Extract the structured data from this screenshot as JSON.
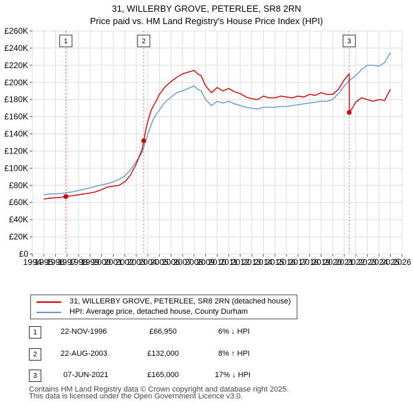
{
  "chart_data": {
    "type": "line",
    "title": "31, WILLERBY GROVE, PETERLEE, SR8 2RN",
    "subtitle": "Price paid vs. HM Land Registry's House Price Index (HPI)",
    "xlabel": "",
    "ylabel": "",
    "xlim": [
      1994,
      2026
    ],
    "ylim": [
      0,
      260000
    ],
    "x_ticks": [
      "1994",
      "1995",
      "1996",
      "1997",
      "1998",
      "1999",
      "2000",
      "2001",
      "2002",
      "2003",
      "2004",
      "2005",
      "2006",
      "2007",
      "2008",
      "2009",
      "2010",
      "2011",
      "2012",
      "2013",
      "2014",
      "2015",
      "2016",
      "2017",
      "2018",
      "2019",
      "2020",
      "2021",
      "2022",
      "2023",
      "2024",
      "2025",
      "2026"
    ],
    "y_ticks": [
      {
        "value": 0,
        "label": "£0"
      },
      {
        "value": 20000,
        "label": "£20K"
      },
      {
        "value": 40000,
        "label": "£40K"
      },
      {
        "value": 60000,
        "label": "£60K"
      },
      {
        "value": 80000,
        "label": "£80K"
      },
      {
        "value": 100000,
        "label": "£100K"
      },
      {
        "value": 120000,
        "label": "£120K"
      },
      {
        "value": 140000,
        "label": "£140K"
      },
      {
        "value": 160000,
        "label": "£160K"
      },
      {
        "value": 180000,
        "label": "£180K"
      },
      {
        "value": 200000,
        "label": "£200K"
      },
      {
        "value": 220000,
        "label": "£220K"
      },
      {
        "value": 240000,
        "label": "£240K"
      },
      {
        "value": 260000,
        "label": "£260K"
      }
    ],
    "grid": true,
    "series": [
      {
        "name": "31, WILLERBY GROVE, PETERLEE, SR8 2RN (detached house)",
        "color": "#cc0000",
        "x": [
          1995.0,
          1995.5,
          1996.0,
          1996.5,
          1996.9,
          1997.5,
          1998.0,
          1998.5,
          1999.0,
          1999.5,
          2000.0,
          2000.5,
          2001.0,
          2001.5,
          2002.0,
          2002.5,
          2003.0,
          2003.5,
          2003.64,
          2003.9,
          2004.3,
          2004.7,
          2005.0,
          2005.5,
          2006.0,
          2006.5,
          2007.0,
          2007.5,
          2008.0,
          2008.3,
          2008.6,
          2009.0,
          2009.5,
          2010.0,
          2010.5,
          2011.0,
          2011.5,
          2012.0,
          2012.5,
          2013.0,
          2013.5,
          2014.0,
          2014.5,
          2015.0,
          2015.5,
          2016.0,
          2016.5,
          2017.0,
          2017.5,
          2018.0,
          2018.5,
          2019.0,
          2019.5,
          2020.0,
          2020.5,
          2021.0,
          2021.3,
          2021.43,
          2021.45,
          2021.7,
          2022.0,
          2022.5,
          2023.0,
          2023.5,
          2024.0,
          2024.5,
          2025.0
        ],
        "values": [
          64000,
          65000,
          65500,
          66000,
          66950,
          68000,
          69000,
          70000,
          71000,
          72500,
          75000,
          78000,
          79000,
          80000,
          84000,
          92000,
          105000,
          122000,
          132000,
          150000,
          168000,
          178000,
          186000,
          195000,
          201000,
          206000,
          210000,
          212000,
          214000,
          210000,
          208000,
          196000,
          188000,
          194000,
          190000,
          193000,
          189000,
          187000,
          183000,
          181000,
          180000,
          184000,
          182000,
          182000,
          184000,
          183000,
          182000,
          184000,
          183000,
          186000,
          185000,
          188000,
          186000,
          186000,
          192000,
          203000,
          208000,
          210000,
          165000,
          170000,
          177000,
          182000,
          180000,
          178000,
          180000,
          179000,
          192000
        ]
      },
      {
        "name": "HPI: Average price, detached house, County Durham",
        "color": "#6699cc",
        "x": [
          1995.0,
          1995.5,
          1996.0,
          1996.5,
          1997.0,
          1997.5,
          1998.0,
          1998.5,
          1999.0,
          1999.5,
          2000.0,
          2000.5,
          2001.0,
          2001.5,
          2002.0,
          2002.5,
          2003.0,
          2003.5,
          2004.0,
          2004.5,
          2005.0,
          2005.5,
          2006.0,
          2006.5,
          2007.0,
          2007.5,
          2008.0,
          2008.3,
          2008.6,
          2009.0,
          2009.5,
          2010.0,
          2010.5,
          2011.0,
          2011.5,
          2012.0,
          2012.5,
          2013.0,
          2013.5,
          2014.0,
          2014.5,
          2015.0,
          2015.5,
          2016.0,
          2016.5,
          2017.0,
          2017.5,
          2018.0,
          2018.5,
          2019.0,
          2019.5,
          2020.0,
          2020.5,
          2021.0,
          2021.5,
          2022.0,
          2022.5,
          2023.0,
          2023.5,
          2024.0,
          2024.5,
          2025.0
        ],
        "values": [
          69000,
          70000,
          70000,
          70500,
          71500,
          72500,
          74000,
          75500,
          77000,
          79000,
          80500,
          82000,
          84000,
          87000,
          91000,
          98000,
          108000,
          118000,
          140000,
          158000,
          168000,
          177000,
          183000,
          188000,
          190000,
          193000,
          196000,
          192000,
          190000,
          180000,
          173000,
          178000,
          176000,
          178000,
          175000,
          173000,
          171000,
          170000,
          169000,
          171000,
          171000,
          171000,
          172000,
          172000,
          173000,
          174000,
          175000,
          176000,
          177000,
          178000,
          178000,
          180000,
          187000,
          196000,
          203000,
          208000,
          215000,
          220000,
          220000,
          219000,
          223000,
          235000
        ]
      }
    ],
    "sales": [
      {
        "n": "1",
        "date": "22-NOV-1996",
        "price": "£66,950",
        "hpi": "6% ↓ HPI",
        "x": 1996.9,
        "value": 66950
      },
      {
        "n": "2",
        "date": "22-AUG-2003",
        "price": "£132,000",
        "hpi": "8% ↑ HPI",
        "x": 2003.64,
        "value": 132000
      },
      {
        "n": "3",
        "date": "07-JUN-2021",
        "price": "£165,000",
        "hpi": "17% ↓ HPI",
        "x": 2021.43,
        "value": 165000
      }
    ]
  },
  "footer": {
    "line1": "Contains HM Land Registry data © Crown copyright and database right 2025.",
    "line2": "This data is licensed under the Open Government Licence v3.0."
  }
}
